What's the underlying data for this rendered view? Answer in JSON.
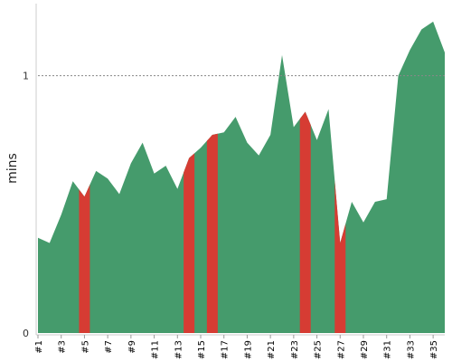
{
  "chart_data": {
    "type": "area",
    "ylabel": "mins",
    "yticks": [
      0,
      1
    ],
    "ylim": [
      0,
      1.28
    ],
    "reference_line": {
      "y": 1,
      "style": "dotted"
    },
    "x_tick_labels": [
      "#1",
      "#3",
      "#5",
      "#7",
      "#9",
      "#11",
      "#13",
      "#15",
      "#17",
      "#19",
      "#21",
      "#23",
      "#25",
      "#27",
      "#29",
      "#31",
      "#33",
      "#35"
    ],
    "builds": [
      1,
      2,
      3,
      4,
      5,
      6,
      7,
      8,
      9,
      10,
      11,
      12,
      13,
      14,
      15,
      16,
      17,
      18,
      19,
      20,
      21,
      22,
      23,
      24,
      25,
      26,
      27,
      28,
      29,
      30,
      31,
      32,
      33,
      34,
      35,
      36
    ],
    "values": [
      0.37,
      0.35,
      0.46,
      0.59,
      0.53,
      0.63,
      0.6,
      0.54,
      0.66,
      0.74,
      0.62,
      0.65,
      0.56,
      0.68,
      0.72,
      0.77,
      0.78,
      0.84,
      0.74,
      0.69,
      0.77,
      1.08,
      0.8,
      0.86,
      0.75,
      0.87,
      0.35,
      0.51,
      0.43,
      0.51,
      0.52,
      1.0,
      1.1,
      1.18,
      1.21,
      1.09
    ],
    "failed_builds": [
      5,
      14,
      16,
      24,
      27
    ],
    "colors": {
      "success": "#459b6c",
      "failed": "#d63c33",
      "reference": "#888888"
    }
  }
}
